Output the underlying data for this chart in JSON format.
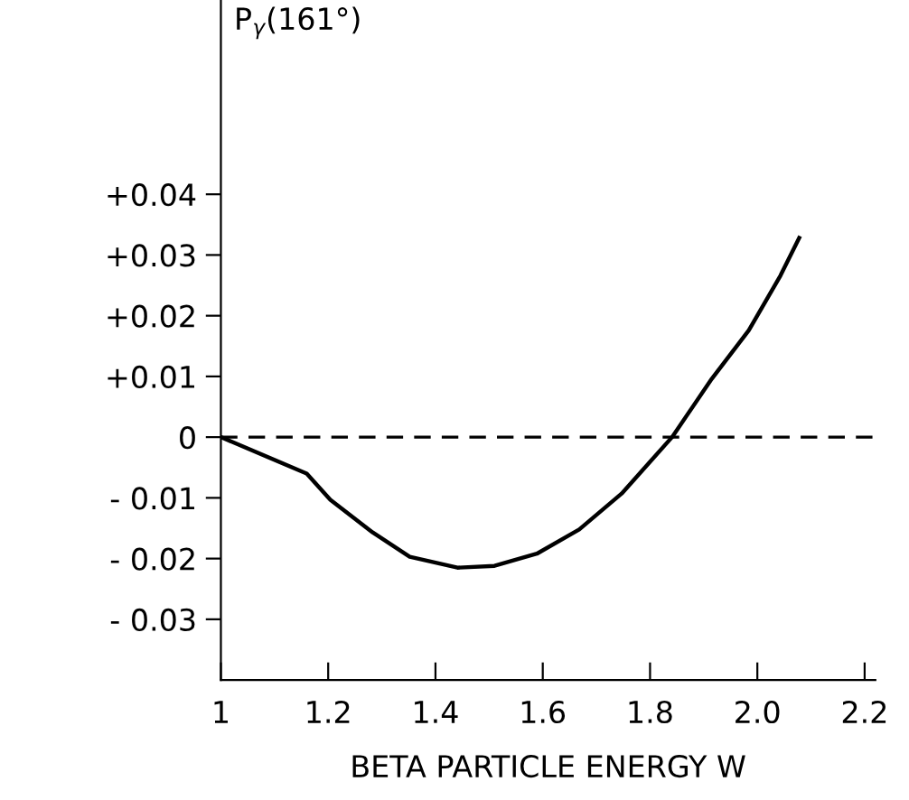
{
  "chart_data": {
    "type": "line",
    "ylabel": "P$_{γ}$(161°)",
    "xlabel": "BETA PARTICLE ENERGY W",
    "x": [
      1.0,
      1.16,
      1.204,
      1.283,
      1.352,
      1.441,
      1.51,
      1.589,
      1.668,
      1.747,
      1.841,
      1.915,
      1.984,
      2.043,
      2.078
    ],
    "series": [
      {
        "color": "#000000",
        "values": [
          0,
          -0.006,
          -0.0103,
          -0.0157,
          -0.0197,
          -0.0215,
          -0.0212,
          -0.0192,
          -0.0152,
          -0.0093,
          0,
          0.0096,
          0.0176,
          0.0266,
          0.0328
        ]
      }
    ],
    "xlim": [
      1.0,
      2.22
    ],
    "ylim": [
      -0.04,
      0.072
    ],
    "xticks": [
      {
        "value": 1,
        "label": "1"
      },
      1.2,
      1.4,
      1.6,
      1.8,
      {
        "value": 2.0,
        "label": "2.0"
      },
      2.2
    ],
    "yticks": [
      {
        "value": -0.03,
        "label": "- 0.03"
      },
      {
        "value": -0.02,
        "label": "- 0.02"
      },
      {
        "value": -0.01,
        "label": "- 0.01"
      },
      0,
      {
        "value": 0.01,
        "label": "+0.01"
      },
      {
        "value": 0.02,
        "label": "+0.02"
      },
      {
        "value": 0.03,
        "label": "+0.03"
      },
      {
        "value": 0.04,
        "label": "+0.04"
      }
    ],
    "ref_lines": [
      {
        "axis": "y",
        "value": 0,
        "color": "#000000",
        "line_style": "dashed"
      }
    ],
    "grid": false,
    "legend": false,
    "marker": "none",
    "line_style": "solid"
  }
}
